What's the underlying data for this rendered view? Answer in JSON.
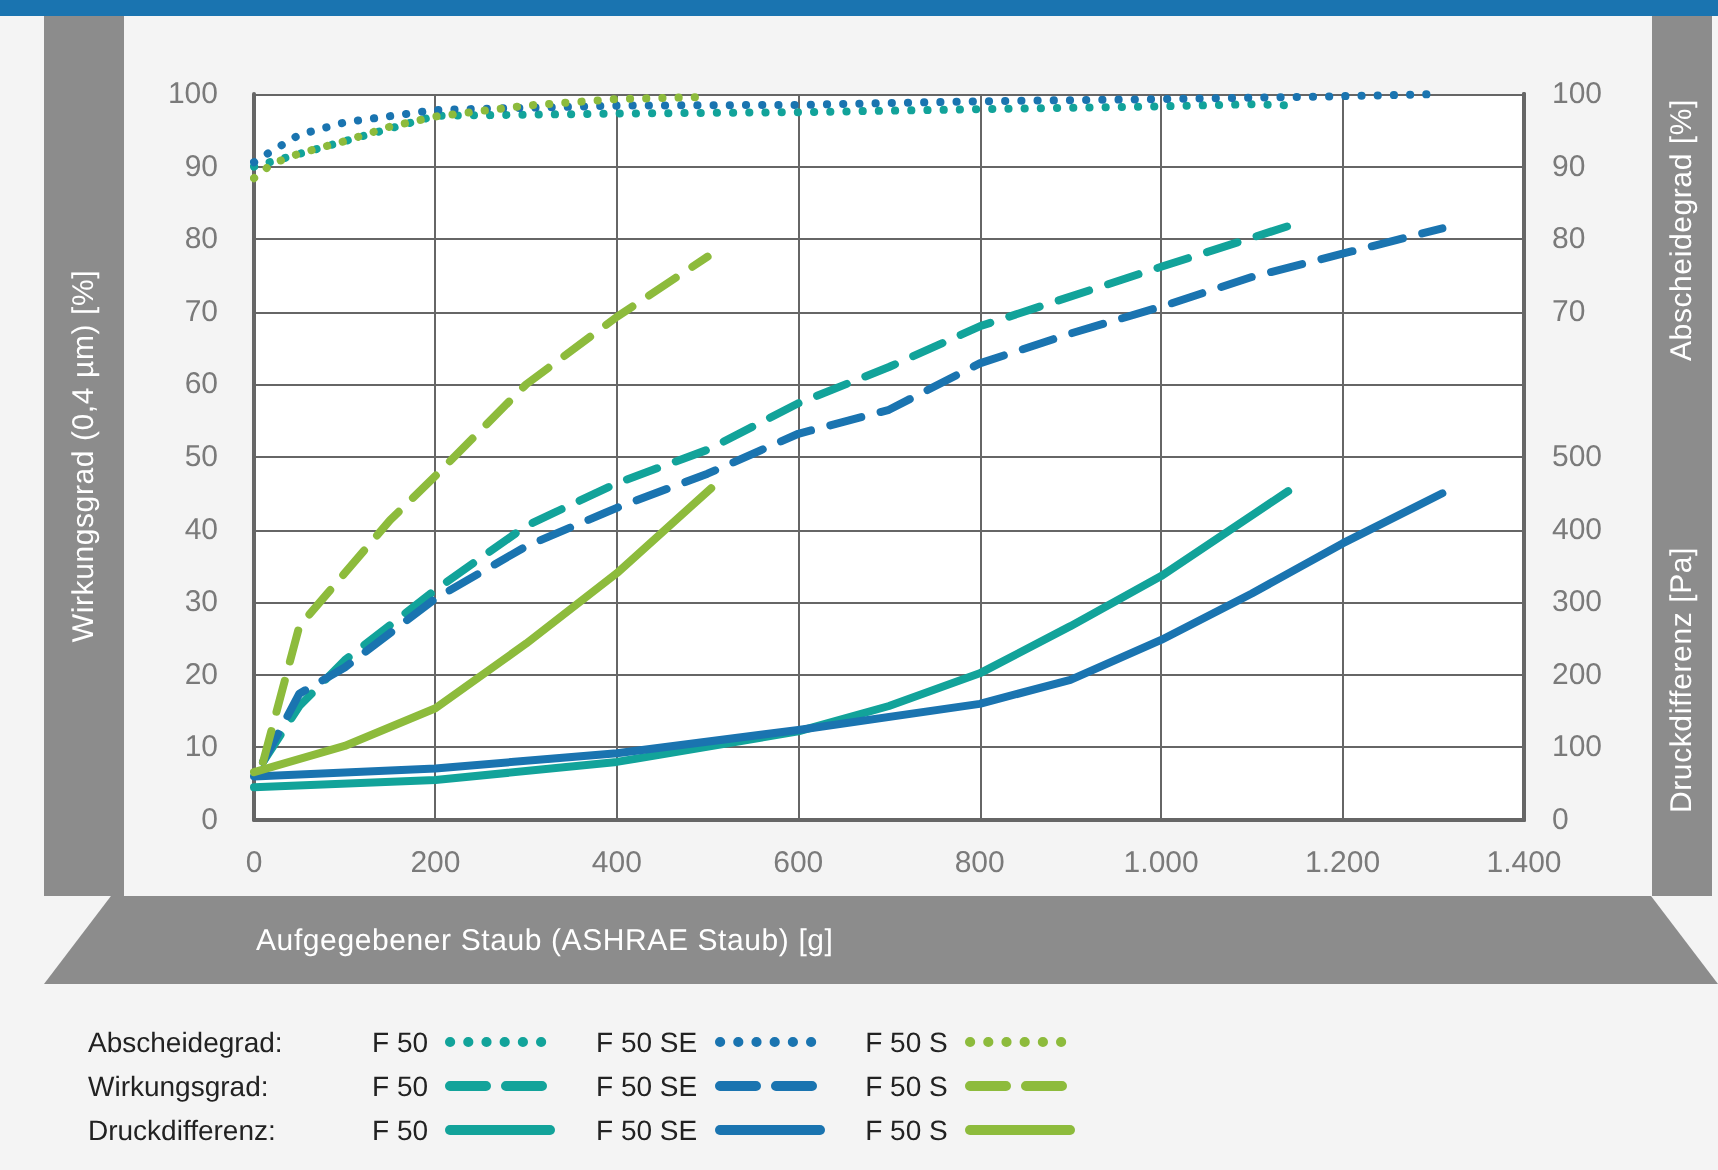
{
  "chart_data": {
    "type": "line",
    "xlabel": "Aufgegebener Staub (ASHRAE Staub) [g]",
    "ylabel": "Wirkungsgrad (0,4 µm) [%]",
    "y2label": "Druckdifferenz [Pa]",
    "y3label": "Abscheidegrad [%]",
    "xlim": [
      0,
      1400
    ],
    "xticks": [
      0,
      200,
      400,
      600,
      800,
      {
        "value": 1000,
        "label": "1.000"
      },
      {
        "value": 1200,
        "label": "1.200"
      },
      {
        "value": 1400,
        "label": "1.400"
      }
    ],
    "ylim": [
      0,
      100
    ],
    "yticks": [
      0,
      10,
      20,
      30,
      40,
      50,
      60,
      70,
      80,
      90,
      100
    ],
    "y2lim": [
      0,
      1000
    ],
    "y2ticks": [
      0,
      100,
      200,
      300,
      400,
      500
    ],
    "y3lim": [
      0,
      100
    ],
    "y3ticks": [
      70,
      80,
      90,
      100
    ],
    "grid": true,
    "marker": "none",
    "legend": "bottom",
    "annotations": [
      "Abscheidegrad:",
      "Wirkungsgrad:",
      "Druckdifferenz:"
    ],
    "series": [
      {
        "name": "F 50",
        "color": "#12a39a",
        "axis": "y3",
        "line_style": "dotted",
        "x": [
          0,
          200,
          400,
          600,
          800,
          1000,
          1100,
          1148
        ],
        "values": [
          90,
          97,
          97.3,
          97.5,
          97.9,
          98.3,
          98.6,
          98.4
        ]
      },
      {
        "name": "F 50 SE",
        "color": "#1a74b0",
        "axis": "y3",
        "line_style": "dotted",
        "x": [
          0,
          19,
          50,
          100,
          200,
          400,
          600,
          800,
          1000,
          1200,
          1310
        ],
        "values": [
          90.6,
          92.1,
          94.4,
          96.1,
          97.8,
          98.4,
          98.5,
          99,
          99.3,
          99.7,
          100
        ]
      },
      {
        "name": "F 50 S",
        "color": "#8dbb3c",
        "axis": "y3",
        "line_style": "dotted",
        "x": [
          0,
          20,
          50,
          100,
          150,
          200,
          300,
          400,
          500
        ],
        "values": [
          88.4,
          90.4,
          91.8,
          93.5,
          95.5,
          96.9,
          98.4,
          99.3,
          99.6
        ]
      },
      {
        "name": "F 50",
        "color": "#12a39a",
        "axis": "y",
        "line_style": "dashed",
        "x": [
          10,
          50,
          100,
          200,
          300,
          400,
          500,
          600,
          700,
          800,
          1000,
          1150
        ],
        "values": [
          8,
          15.7,
          22,
          31.7,
          40.5,
          46.4,
          51,
          57.4,
          62.4,
          68,
          76.2,
          82.2
        ]
      },
      {
        "name": "F 50 SE",
        "color": "#1a74b0",
        "axis": "y",
        "line_style": "dashed",
        "x": [
          10,
          50,
          100,
          200,
          300,
          400,
          500,
          600,
          700,
          800,
          900,
          1000,
          1100,
          1200,
          1310
        ],
        "values": [
          8,
          17.4,
          21,
          30.5,
          37.7,
          43,
          47.7,
          53.2,
          56.5,
          62.9,
          67,
          70.7,
          74.8,
          78,
          81.5
        ]
      },
      {
        "name": "F 50 S",
        "color": "#8dbb3c",
        "axis": "y",
        "line_style": "dashed",
        "x": [
          10,
          50,
          100,
          150,
          200,
          300,
          400,
          500
        ],
        "values": [
          8,
          26.7,
          34,
          41.3,
          47.4,
          60,
          69.3,
          77.6
        ]
      },
      {
        "name": "F 50",
        "color": "#12a39a",
        "axis": "y2",
        "line_style": "solid",
        "x": [
          0,
          200,
          400,
          600,
          700,
          800,
          900,
          1000,
          1140
        ],
        "values": [
          45,
          55,
          80,
          122,
          157,
          202,
          267,
          336,
          453
        ]
      },
      {
        "name": "F 50 SE",
        "color": "#1a74b0",
        "axis": "y2",
        "line_style": "solid",
        "x": [
          0,
          200,
          400,
          600,
          800,
          900,
          1000,
          1100,
          1200,
          1310
        ],
        "values": [
          60,
          71,
          92,
          124,
          160,
          193,
          248,
          312,
          381,
          450
        ]
      },
      {
        "name": "F 50 S",
        "color": "#8dbb3c",
        "axis": "y2",
        "line_style": "solid",
        "x": [
          0,
          100,
          200,
          300,
          400,
          504
        ],
        "values": [
          66,
          102,
          154,
          243,
          340,
          457
        ]
      }
    ]
  }
}
